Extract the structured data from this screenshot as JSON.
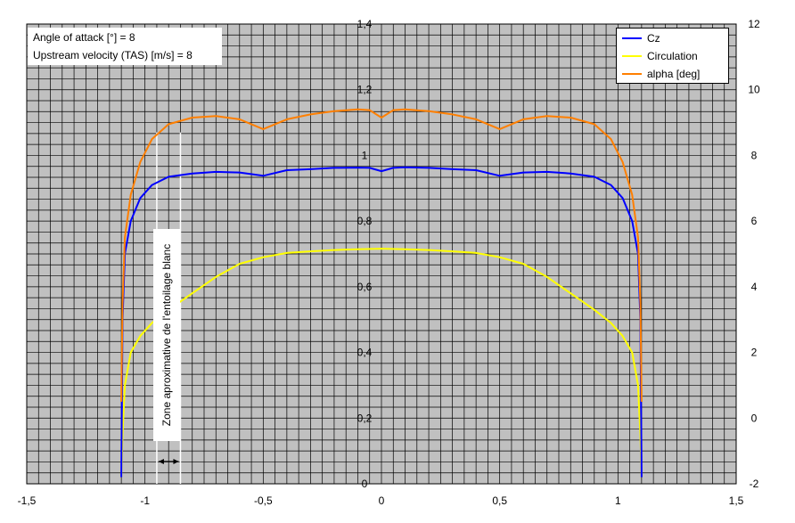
{
  "chart_data": {
    "type": "line",
    "grid": true,
    "x_axis": {
      "range": [
        -1.5,
        1.5
      ],
      "ticks": [
        "-1,5",
        "-1",
        "-0,5",
        "0",
        "0,5",
        "1",
        "1,5"
      ]
    },
    "y_left": {
      "range": [
        0,
        1.4
      ],
      "ticks": [
        "0",
        "0,2",
        "0,4",
        "0,6",
        "0,8",
        "1",
        "1,2",
        "1,4"
      ]
    },
    "y_right": {
      "range": [
        -2,
        12
      ],
      "ticks": [
        "-2",
        "0",
        "2",
        "4",
        "6",
        "8",
        "10",
        "12"
      ]
    },
    "legend_position": "top-right",
    "series": [
      {
        "name": "Cz",
        "color": "#0000ff",
        "axis": "left",
        "points": [
          [
            -1.1,
            0.02
          ],
          [
            -1.095,
            0.5
          ],
          [
            -1.085,
            0.7
          ],
          [
            -1.06,
            0.8
          ],
          [
            -1.02,
            0.87
          ],
          [
            -0.97,
            0.91
          ],
          [
            -0.9,
            0.935
          ],
          [
            -0.8,
            0.945
          ],
          [
            -0.7,
            0.95
          ],
          [
            -0.6,
            0.948
          ],
          [
            -0.5,
            0.938
          ],
          [
            -0.4,
            0.955
          ],
          [
            -0.3,
            0.958
          ],
          [
            -0.2,
            0.962
          ],
          [
            -0.1,
            0.963
          ],
          [
            -0.05,
            0.962
          ],
          [
            0,
            0.952
          ],
          [
            0.05,
            0.962
          ],
          [
            0.1,
            0.964
          ],
          [
            0.2,
            0.962
          ],
          [
            0.3,
            0.958
          ],
          [
            0.4,
            0.955
          ],
          [
            0.5,
            0.938
          ],
          [
            0.6,
            0.948
          ],
          [
            0.7,
            0.95
          ],
          [
            0.8,
            0.945
          ],
          [
            0.9,
            0.935
          ],
          [
            0.97,
            0.91
          ],
          [
            1.02,
            0.87
          ],
          [
            1.06,
            0.8
          ],
          [
            1.085,
            0.7
          ],
          [
            1.095,
            0.5
          ],
          [
            1.1,
            0.02
          ]
        ]
      },
      {
        "name": "Circulation",
        "color": "#ffff00",
        "axis": "left",
        "points": [
          [
            -1.1,
            0.02
          ],
          [
            -1.095,
            0.15
          ],
          [
            -1.085,
            0.3
          ],
          [
            -1.06,
            0.4
          ],
          [
            -1.02,
            0.45
          ],
          [
            -0.97,
            0.49
          ],
          [
            -0.9,
            0.53
          ],
          [
            -0.8,
            0.58
          ],
          [
            -0.7,
            0.63
          ],
          [
            -0.6,
            0.67
          ],
          [
            -0.5,
            0.69
          ],
          [
            -0.4,
            0.703
          ],
          [
            -0.3,
            0.708
          ],
          [
            -0.2,
            0.712
          ],
          [
            -0.1,
            0.714
          ],
          [
            0,
            0.716
          ],
          [
            0.1,
            0.714
          ],
          [
            0.2,
            0.712
          ],
          [
            0.3,
            0.708
          ],
          [
            0.4,
            0.703
          ],
          [
            0.5,
            0.69
          ],
          [
            0.6,
            0.67
          ],
          [
            0.7,
            0.63
          ],
          [
            0.8,
            0.58
          ],
          [
            0.9,
            0.53
          ],
          [
            0.97,
            0.49
          ],
          [
            1.02,
            0.45
          ],
          [
            1.06,
            0.4
          ],
          [
            1.085,
            0.3
          ],
          [
            1.095,
            0.15
          ],
          [
            1.1,
            0.02
          ]
        ]
      },
      {
        "name": "alpha [deg]",
        "color": "#ff7f00",
        "axis": "right",
        "points": [
          [
            -1.1,
            0.5
          ],
          [
            -1.095,
            3.5
          ],
          [
            -1.085,
            5.5
          ],
          [
            -1.06,
            6.8
          ],
          [
            -1.02,
            7.8
          ],
          [
            -0.97,
            8.5
          ],
          [
            -0.9,
            8.95
          ],
          [
            -0.8,
            9.15
          ],
          [
            -0.7,
            9.2
          ],
          [
            -0.6,
            9.1
          ],
          [
            -0.5,
            8.8
          ],
          [
            -0.4,
            9.1
          ],
          [
            -0.3,
            9.25
          ],
          [
            -0.2,
            9.35
          ],
          [
            -0.1,
            9.4
          ],
          [
            -0.05,
            9.38
          ],
          [
            0,
            9.15
          ],
          [
            0.05,
            9.38
          ],
          [
            0.1,
            9.4
          ],
          [
            0.2,
            9.35
          ],
          [
            0.3,
            9.25
          ],
          [
            0.4,
            9.1
          ],
          [
            0.5,
            8.8
          ],
          [
            0.6,
            9.1
          ],
          [
            0.7,
            9.2
          ],
          [
            0.8,
            9.15
          ],
          [
            0.9,
            8.95
          ],
          [
            0.97,
            8.5
          ],
          [
            1.02,
            7.8
          ],
          [
            1.06,
            6.8
          ],
          [
            1.085,
            5.5
          ],
          [
            1.095,
            3.5
          ],
          [
            1.1,
            0.5
          ]
        ]
      }
    ],
    "annotation": {
      "text": "Zone aproximative de l'entoilage blanc",
      "x_range": [
        -0.95,
        -0.85
      ]
    }
  },
  "info_box": {
    "line1": "Angle of attack [°]  =  8",
    "line2": "Upstream velocity (TAS) [m/s]  =  8"
  }
}
